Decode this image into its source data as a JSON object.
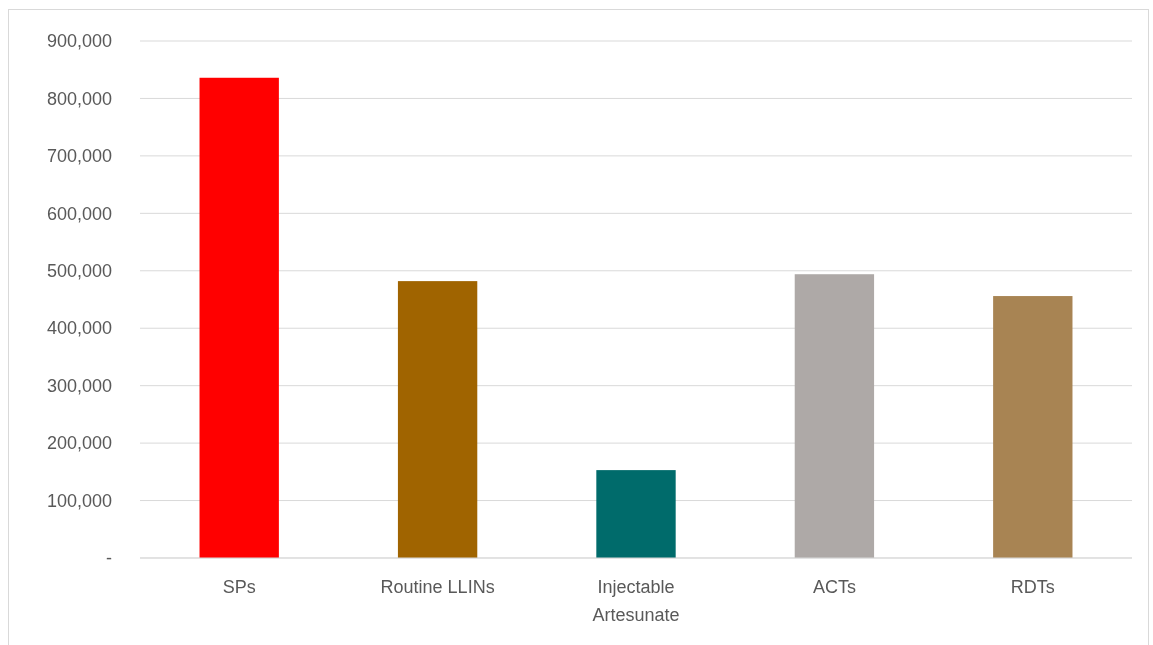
{
  "chart_data": {
    "type": "bar",
    "categories": [
      "SPs",
      "Routine LLINs",
      "Injectable Artesunate",
      "ACTs",
      "RDTs"
    ],
    "values": [
      836000,
      482000,
      153000,
      494000,
      456000
    ],
    "colors": [
      "#ff0000",
      "#a06400",
      "#006b6b",
      "#aea9a7",
      "#a88453"
    ],
    "ylim": [
      0,
      900000
    ],
    "yticks": [
      {
        "value": 0,
        "label": "-"
      },
      {
        "value": 100000,
        "label": "100,000"
      },
      {
        "value": 200000,
        "label": "200,000"
      },
      {
        "value": 300000,
        "label": "300,000"
      },
      {
        "value": 400000,
        "label": "400,000"
      },
      {
        "value": 500000,
        "label": "500,000"
      },
      {
        "value": 600000,
        "label": "600,000"
      },
      {
        "value": 700000,
        "label": "700,000"
      },
      {
        "value": 800000,
        "label": "800,000"
      },
      {
        "value": 900000,
        "label": "900,000"
      }
    ],
    "grid": "y"
  }
}
